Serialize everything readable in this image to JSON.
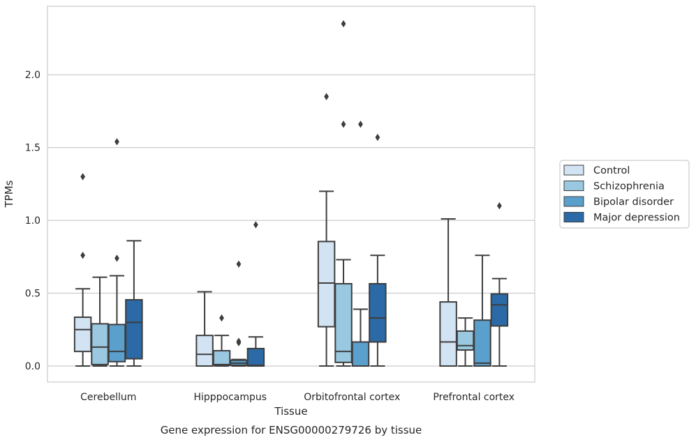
{
  "chart_data": {
    "type": "box",
    "xlabel": "Tissue",
    "ylabel": "TPMs",
    "caption": "Gene expression for ENSG00000279726 by tissue",
    "ylim": [
      -0.11,
      2.47
    ],
    "yticks": [
      "0.0",
      "0.5",
      "1.0",
      "1.5",
      "2.0"
    ],
    "grid": "horizontal",
    "legend_position": "right",
    "categories": [
      "Cerebellum",
      "Hipppocampus",
      "Orbitofrontal cortex",
      "Prefrontal cortex"
    ],
    "series": [
      {
        "name": "Control",
        "color": "#d2e3f3",
        "boxes": [
          {
            "lw": 0,
            "q1": 0.1,
            "med": 0.25,
            "q3": 0.335,
            "uw": 0.53,
            "outliers": [
              0.76,
              1.3
            ]
          },
          {
            "lw": 0,
            "q1": 0,
            "med": 0.08,
            "q3": 0.21,
            "uw": 0.51,
            "outliers": []
          },
          {
            "lw": 0,
            "q1": 0.27,
            "med": 0.57,
            "q3": 0.855,
            "uw": 1.2,
            "outliers": [
              1.85
            ]
          },
          {
            "lw": 0,
            "q1": 0,
            "med": 0.165,
            "q3": 0.44,
            "uw": 1.01,
            "outliers": []
          }
        ]
      },
      {
        "name": "Schizophrenia",
        "color": "#9ac8e0",
        "boxes": [
          {
            "lw": 0,
            "q1": 0.01,
            "med": 0.13,
            "q3": 0.29,
            "uw": 0.61,
            "outliers": []
          },
          {
            "lw": 0,
            "q1": 0.005,
            "med": 0.01,
            "q3": 0.105,
            "uw": 0.21,
            "outliers": [
              0.33
            ]
          },
          {
            "lw": 0,
            "q1": 0.025,
            "med": 0.1,
            "q3": 0.565,
            "uw": 0.73,
            "outliers": [
              1.66,
              2.35
            ]
          },
          {
            "lw": 0,
            "q1": 0.11,
            "med": 0.14,
            "q3": 0.24,
            "uw": 0.33,
            "outliers": []
          }
        ]
      },
      {
        "name": "Bipolar disorder",
        "color": "#5b9fcc",
        "boxes": [
          {
            "lw": 0,
            "q1": 0.03,
            "med": 0.1,
            "q3": 0.285,
            "uw": 0.62,
            "outliers": [
              0.74,
              1.54
            ]
          },
          {
            "lw": 0,
            "q1": 0.005,
            "med": 0.02,
            "q3": 0.04,
            "uw": 0.045,
            "outliers": [
              0.16,
              0.17,
              0.7
            ]
          },
          {
            "lw": 0,
            "q1": 0,
            "med": 0,
            "q3": 0.165,
            "uw": 0.39,
            "outliers": [
              1.66
            ]
          },
          {
            "lw": 0,
            "q1": 0,
            "med": 0.02,
            "q3": 0.315,
            "uw": 0.76,
            "outliers": []
          }
        ]
      },
      {
        "name": "Major depression",
        "color": "#2b6aa6",
        "boxes": [
          {
            "lw": 0,
            "q1": 0.05,
            "med": 0.3,
            "q3": 0.455,
            "uw": 0.86,
            "outliers": []
          },
          {
            "lw": 0,
            "q1": 0,
            "med": 0.005,
            "q3": 0.12,
            "uw": 0.2,
            "outliers": [
              0.97
            ]
          },
          {
            "lw": 0,
            "q1": 0.165,
            "med": 0.33,
            "q3": 0.565,
            "uw": 0.76,
            "outliers": [
              1.57
            ]
          },
          {
            "lw": 0,
            "q1": 0.275,
            "med": 0.42,
            "q3": 0.495,
            "uw": 0.6,
            "outliers": [
              1.1
            ]
          }
        ]
      }
    ]
  }
}
